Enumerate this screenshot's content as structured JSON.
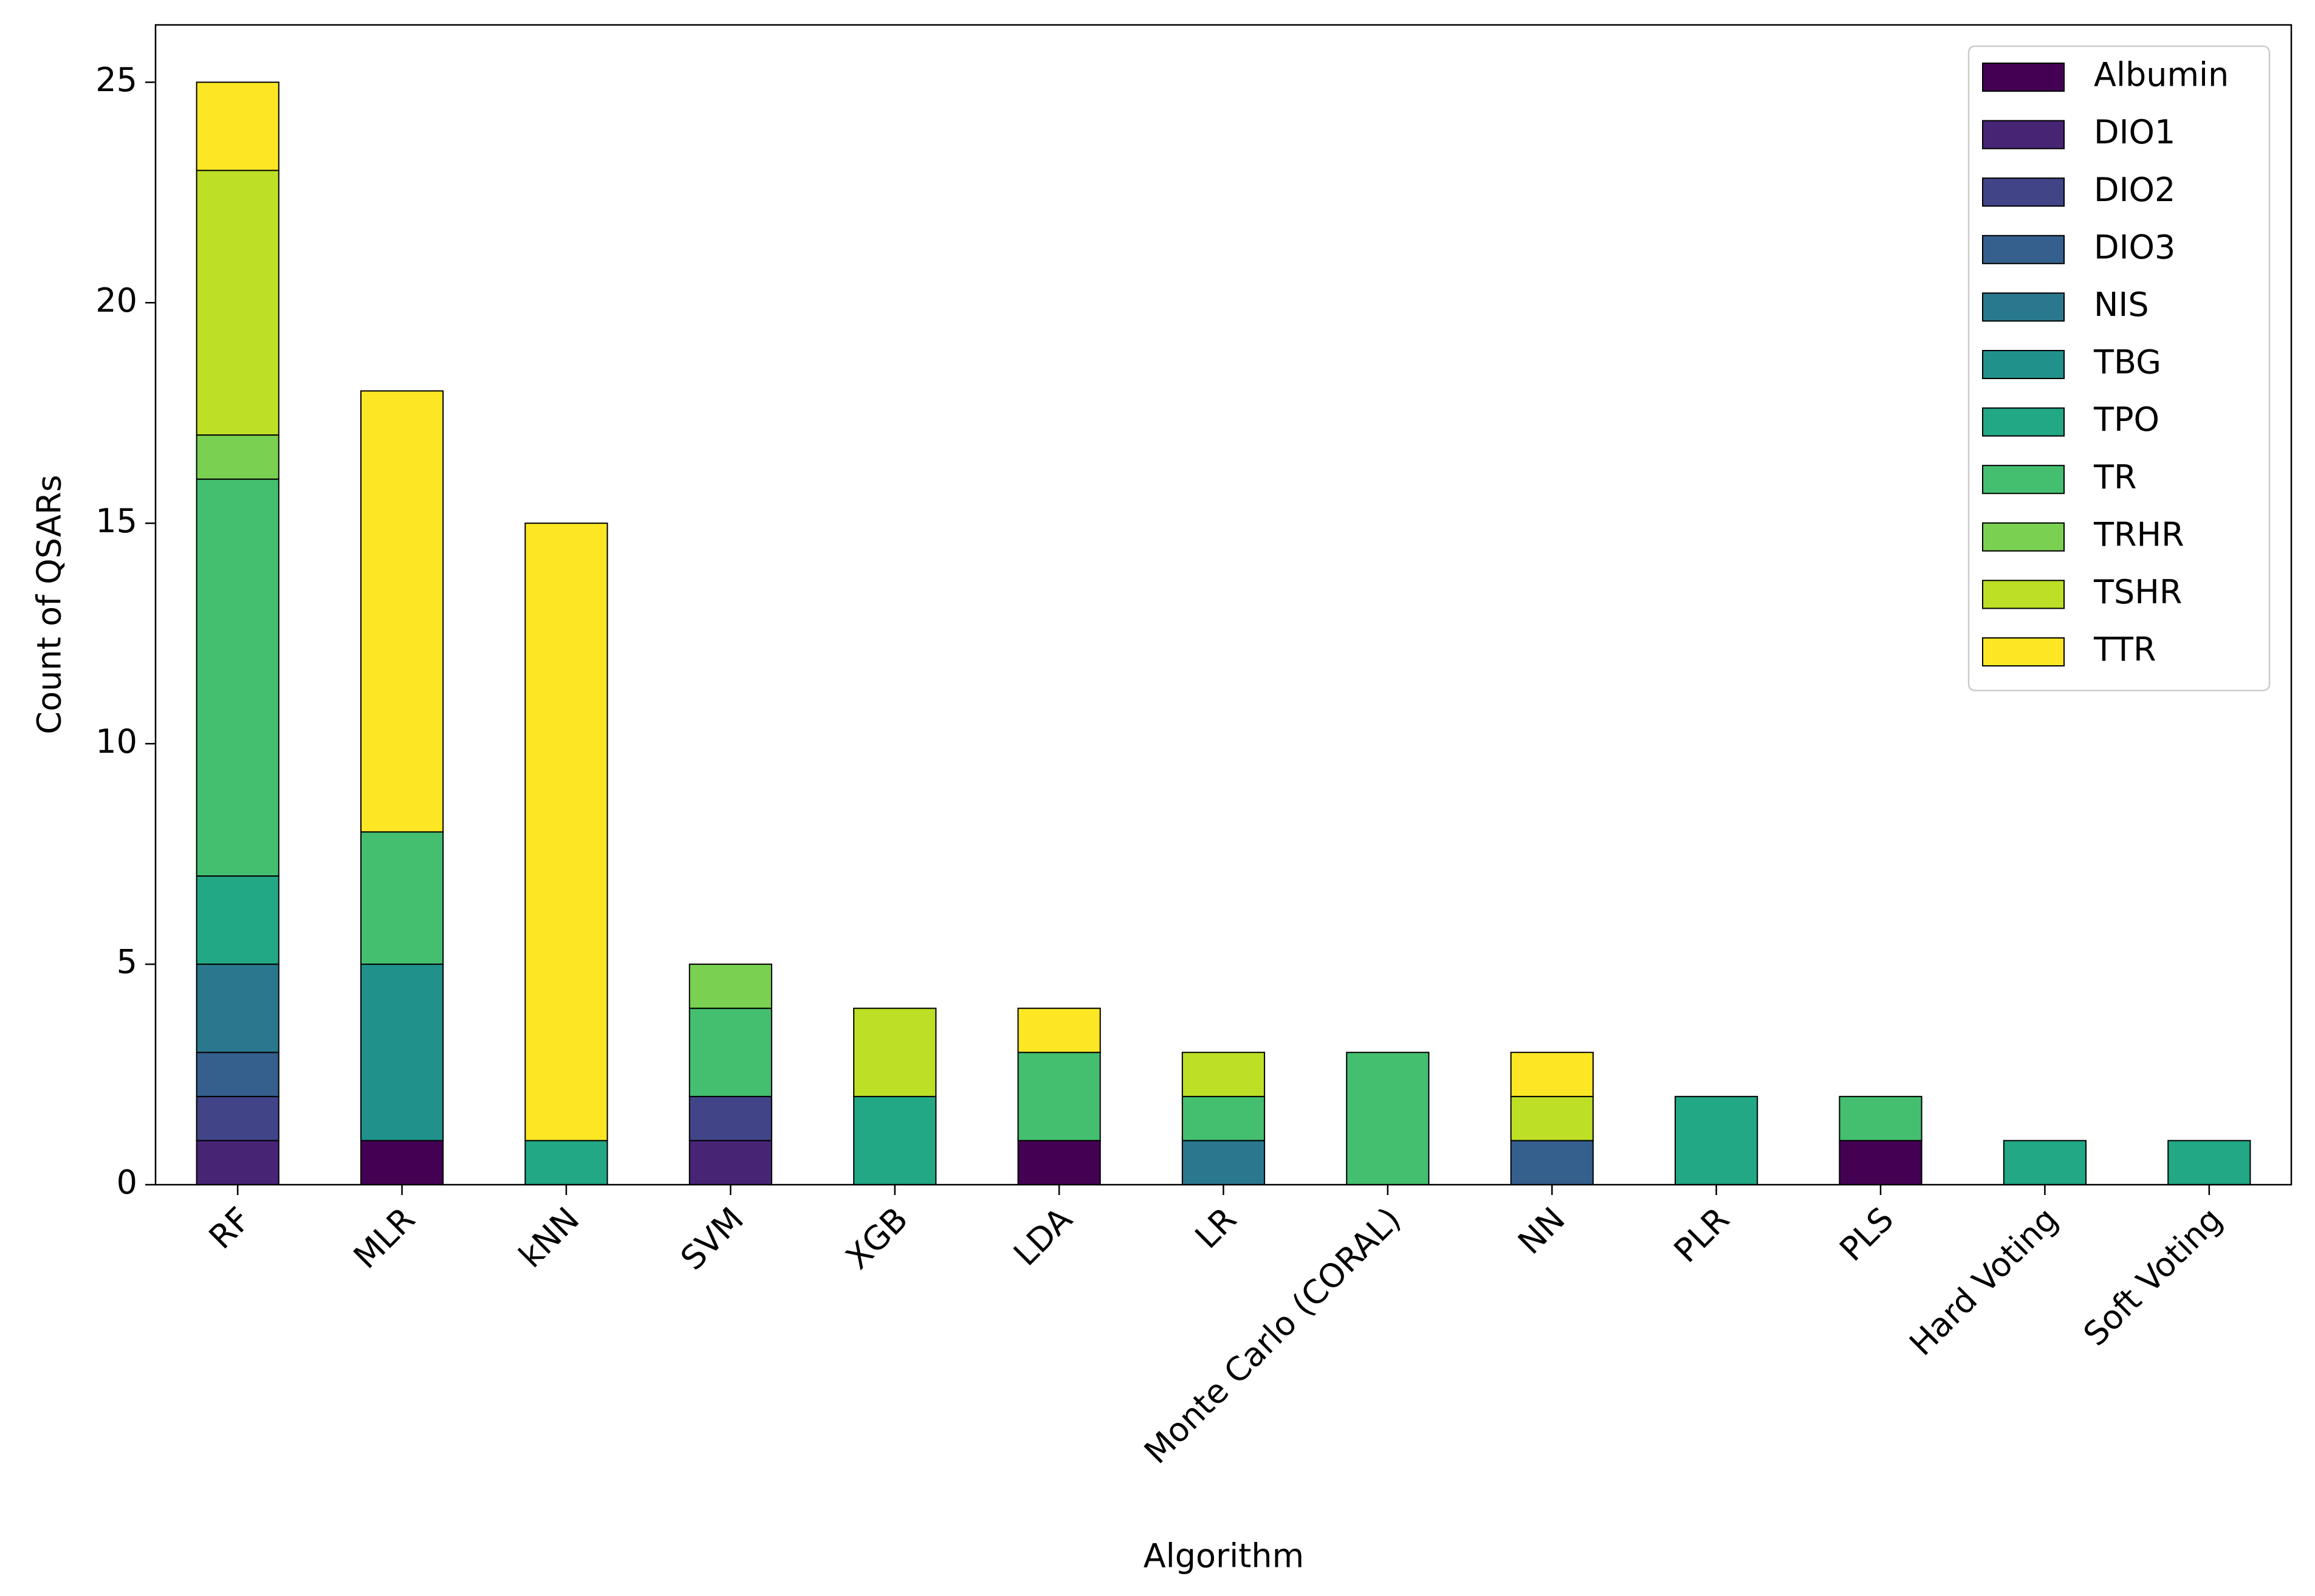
{
  "chart_data": {
    "type": "stacked_bar",
    "xlabel": "Algorithm",
    "ylabel": "Count of QSARs",
    "categories": [
      "RF",
      "MLR",
      "kNN",
      "SVM",
      "XGB",
      "LDA",
      "LR",
      "Monte Carlo (CORAL)",
      "NN",
      "PLR",
      "PLS",
      "Hard Voting",
      "Soft Voting"
    ],
    "series": [
      {
        "name": "Albumin",
        "color": "#440154",
        "values": [
          0,
          1,
          0,
          0,
          0,
          1,
          0,
          0,
          0,
          0,
          1,
          0,
          0
        ]
      },
      {
        "name": "DIO1",
        "color": "#482475",
        "values": [
          1,
          0,
          0,
          1,
          0,
          0,
          0,
          0,
          0,
          0,
          0,
          0,
          0
        ]
      },
      {
        "name": "DIO2",
        "color": "#414487",
        "values": [
          1,
          0,
          0,
          1,
          0,
          0,
          0,
          0,
          0,
          0,
          0,
          0,
          0
        ]
      },
      {
        "name": "DIO3",
        "color": "#355f8d",
        "values": [
          1,
          0,
          0,
          0,
          0,
          0,
          0,
          0,
          1,
          0,
          0,
          0,
          0
        ]
      },
      {
        "name": "NIS",
        "color": "#2a788e",
        "values": [
          2,
          0,
          0,
          0,
          0,
          0,
          1,
          0,
          0,
          0,
          0,
          0,
          0
        ]
      },
      {
        "name": "TBG",
        "color": "#21918c",
        "values": [
          0,
          4,
          0,
          0,
          0,
          0,
          0,
          0,
          0,
          0,
          0,
          0,
          0
        ]
      },
      {
        "name": "TPO",
        "color": "#22a884",
        "values": [
          2,
          0,
          1,
          0,
          2,
          0,
          0,
          0,
          0,
          2,
          0,
          1,
          1
        ]
      },
      {
        "name": "TR",
        "color": "#44bf70",
        "values": [
          9,
          3,
          0,
          2,
          0,
          2,
          1,
          3,
          0,
          0,
          1,
          0,
          0
        ]
      },
      {
        "name": "TRHR",
        "color": "#7ad151",
        "values": [
          1,
          0,
          0,
          1,
          0,
          0,
          0,
          0,
          0,
          0,
          0,
          0,
          0
        ]
      },
      {
        "name": "TSHR",
        "color": "#bddf26",
        "values": [
          6,
          0,
          0,
          0,
          2,
          0,
          1,
          0,
          1,
          0,
          0,
          0,
          0
        ]
      },
      {
        "name": "TTR",
        "color": "#fde725",
        "values": [
          2,
          10,
          14,
          0,
          0,
          1,
          0,
          0,
          1,
          0,
          0,
          0,
          0
        ]
      }
    ],
    "ylim": [
      0,
      26.3
    ],
    "yticks": [
      0,
      5,
      10,
      15,
      20,
      25
    ],
    "grid": false,
    "legend": "upper right"
  }
}
